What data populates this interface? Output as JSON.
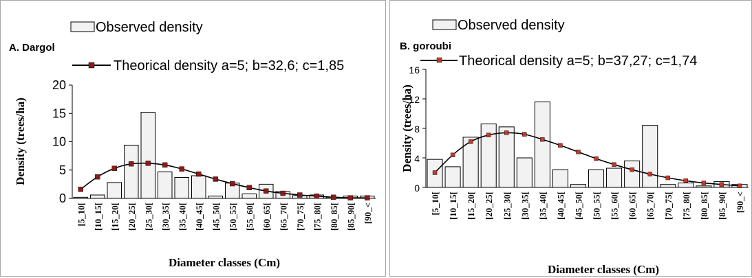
{
  "chart_data": [
    {
      "type": "bar",
      "panel_label": "A. Dargol",
      "categories": [
        "[5_10[",
        "[10_15[",
        "[15_20[",
        "[20_25[",
        "[25_30[",
        "[30_35[",
        "[35_40[",
        "[40_45[",
        "[45_50[",
        "[50_55[",
        "[55_60[",
        "[60_65[",
        "[65_70[",
        "[70_75[",
        "[75_80[",
        "[80_85[",
        "[85_90[",
        "[90_<"
      ],
      "series": [
        {
          "name": "Observed density",
          "kind": "bar",
          "values": [
            0.2,
            0.6,
            2.8,
            9.4,
            15.2,
            4.7,
            3.7,
            4.0,
            0.4,
            2.7,
            0.8,
            2.5,
            1.2,
            0.5,
            0.6,
            0.2,
            0.4,
            0.4
          ]
        },
        {
          "name": "Theorical density a=5; b=32,6; c=1,85",
          "kind": "line",
          "values": [
            1.6,
            3.8,
            5.3,
            6.1,
            6.2,
            5.9,
            5.2,
            4.3,
            3.4,
            2.6,
            1.9,
            1.3,
            0.9,
            0.6,
            0.4,
            0.2,
            0.1,
            0.1
          ]
        }
      ],
      "yticks": [
        "0",
        "5",
        "10",
        "15",
        "20"
      ],
      "ylim": [
        0,
        20
      ],
      "xlabel": "Diameter classes (Cm)",
      "ylabel": "Density (trees/ha)"
    },
    {
      "type": "bar",
      "panel_label": "B. goroubi",
      "categories": [
        "[5_10[",
        "[10_15[",
        "[15_20[",
        "[20_25[",
        "[25_30[",
        "[30_35[",
        "[35_40[",
        "[40_45[",
        "[45_50[",
        "[50_55[",
        "[55_60[",
        "[60_65[",
        "[65_70[",
        "[70_75[",
        "[75_80[",
        "[80_85[",
        "[85_90[",
        "[90_<"
      ],
      "series": [
        {
          "name": "Observed density",
          "kind": "bar",
          "values": [
            3.8,
            2.8,
            6.8,
            8.6,
            8.2,
            4.0,
            11.6,
            2.4,
            0.4,
            2.4,
            2.6,
            3.6,
            8.4,
            0.4,
            0.6,
            0.2,
            0.8,
            0.4
          ]
        },
        {
          "name": "Theorical density a=5; b=37,27; c=1,74",
          "kind": "line",
          "values": [
            2.0,
            4.4,
            6.2,
            7.1,
            7.4,
            7.2,
            6.5,
            5.7,
            4.8,
            3.9,
            3.1,
            2.4,
            1.8,
            1.3,
            0.9,
            0.6,
            0.4,
            0.2
          ]
        }
      ],
      "yticks": [
        "0",
        "4",
        "8",
        "12",
        "16"
      ],
      "ylim": [
        0,
        16
      ],
      "xlabel": "Diameter classes (Cm)",
      "ylabel": "Density (trees/ha)"
    }
  ],
  "colors": {
    "bar_fill": "#f2f2f2",
    "bar_stroke": "#000000",
    "line_a": "#000000",
    "marker_a": "#8b1a1a",
    "line_b": "#000000",
    "marker_b": "#c0392b"
  }
}
